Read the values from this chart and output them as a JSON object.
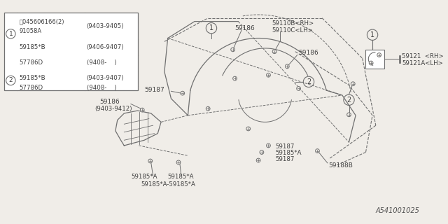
{
  "bg_color": "#f0ede8",
  "line_color": "#707070",
  "text_color": "#404040",
  "footer": "A541001025",
  "table_rows": [
    [
      "①",
      "Ⓢ045606166(2)\n91058A",
      "(9403-9405)"
    ],
    [
      "",
      "59185*B",
      "(9406-9407)"
    ],
    [
      "",
      "57786D",
      "(9408-    )"
    ],
    [
      "②",
      "59185*B",
      "(9403-9407)"
    ],
    [
      "",
      "57786D",
      "(9408-    )"
    ]
  ],
  "parts": {
    "59110B_RH": "59110B<RH>",
    "59110C_LH": "59110C<LH>",
    "59186": "59186",
    "59186_date": "(9403-9412)",
    "59187": "59187",
    "59185A": "59185*A",
    "59185A2": "59185*A-59185*A",
    "59188B": "59188B",
    "59121_RH": "59121  <RH>",
    "59121A_LH": "59121A<LH>"
  }
}
